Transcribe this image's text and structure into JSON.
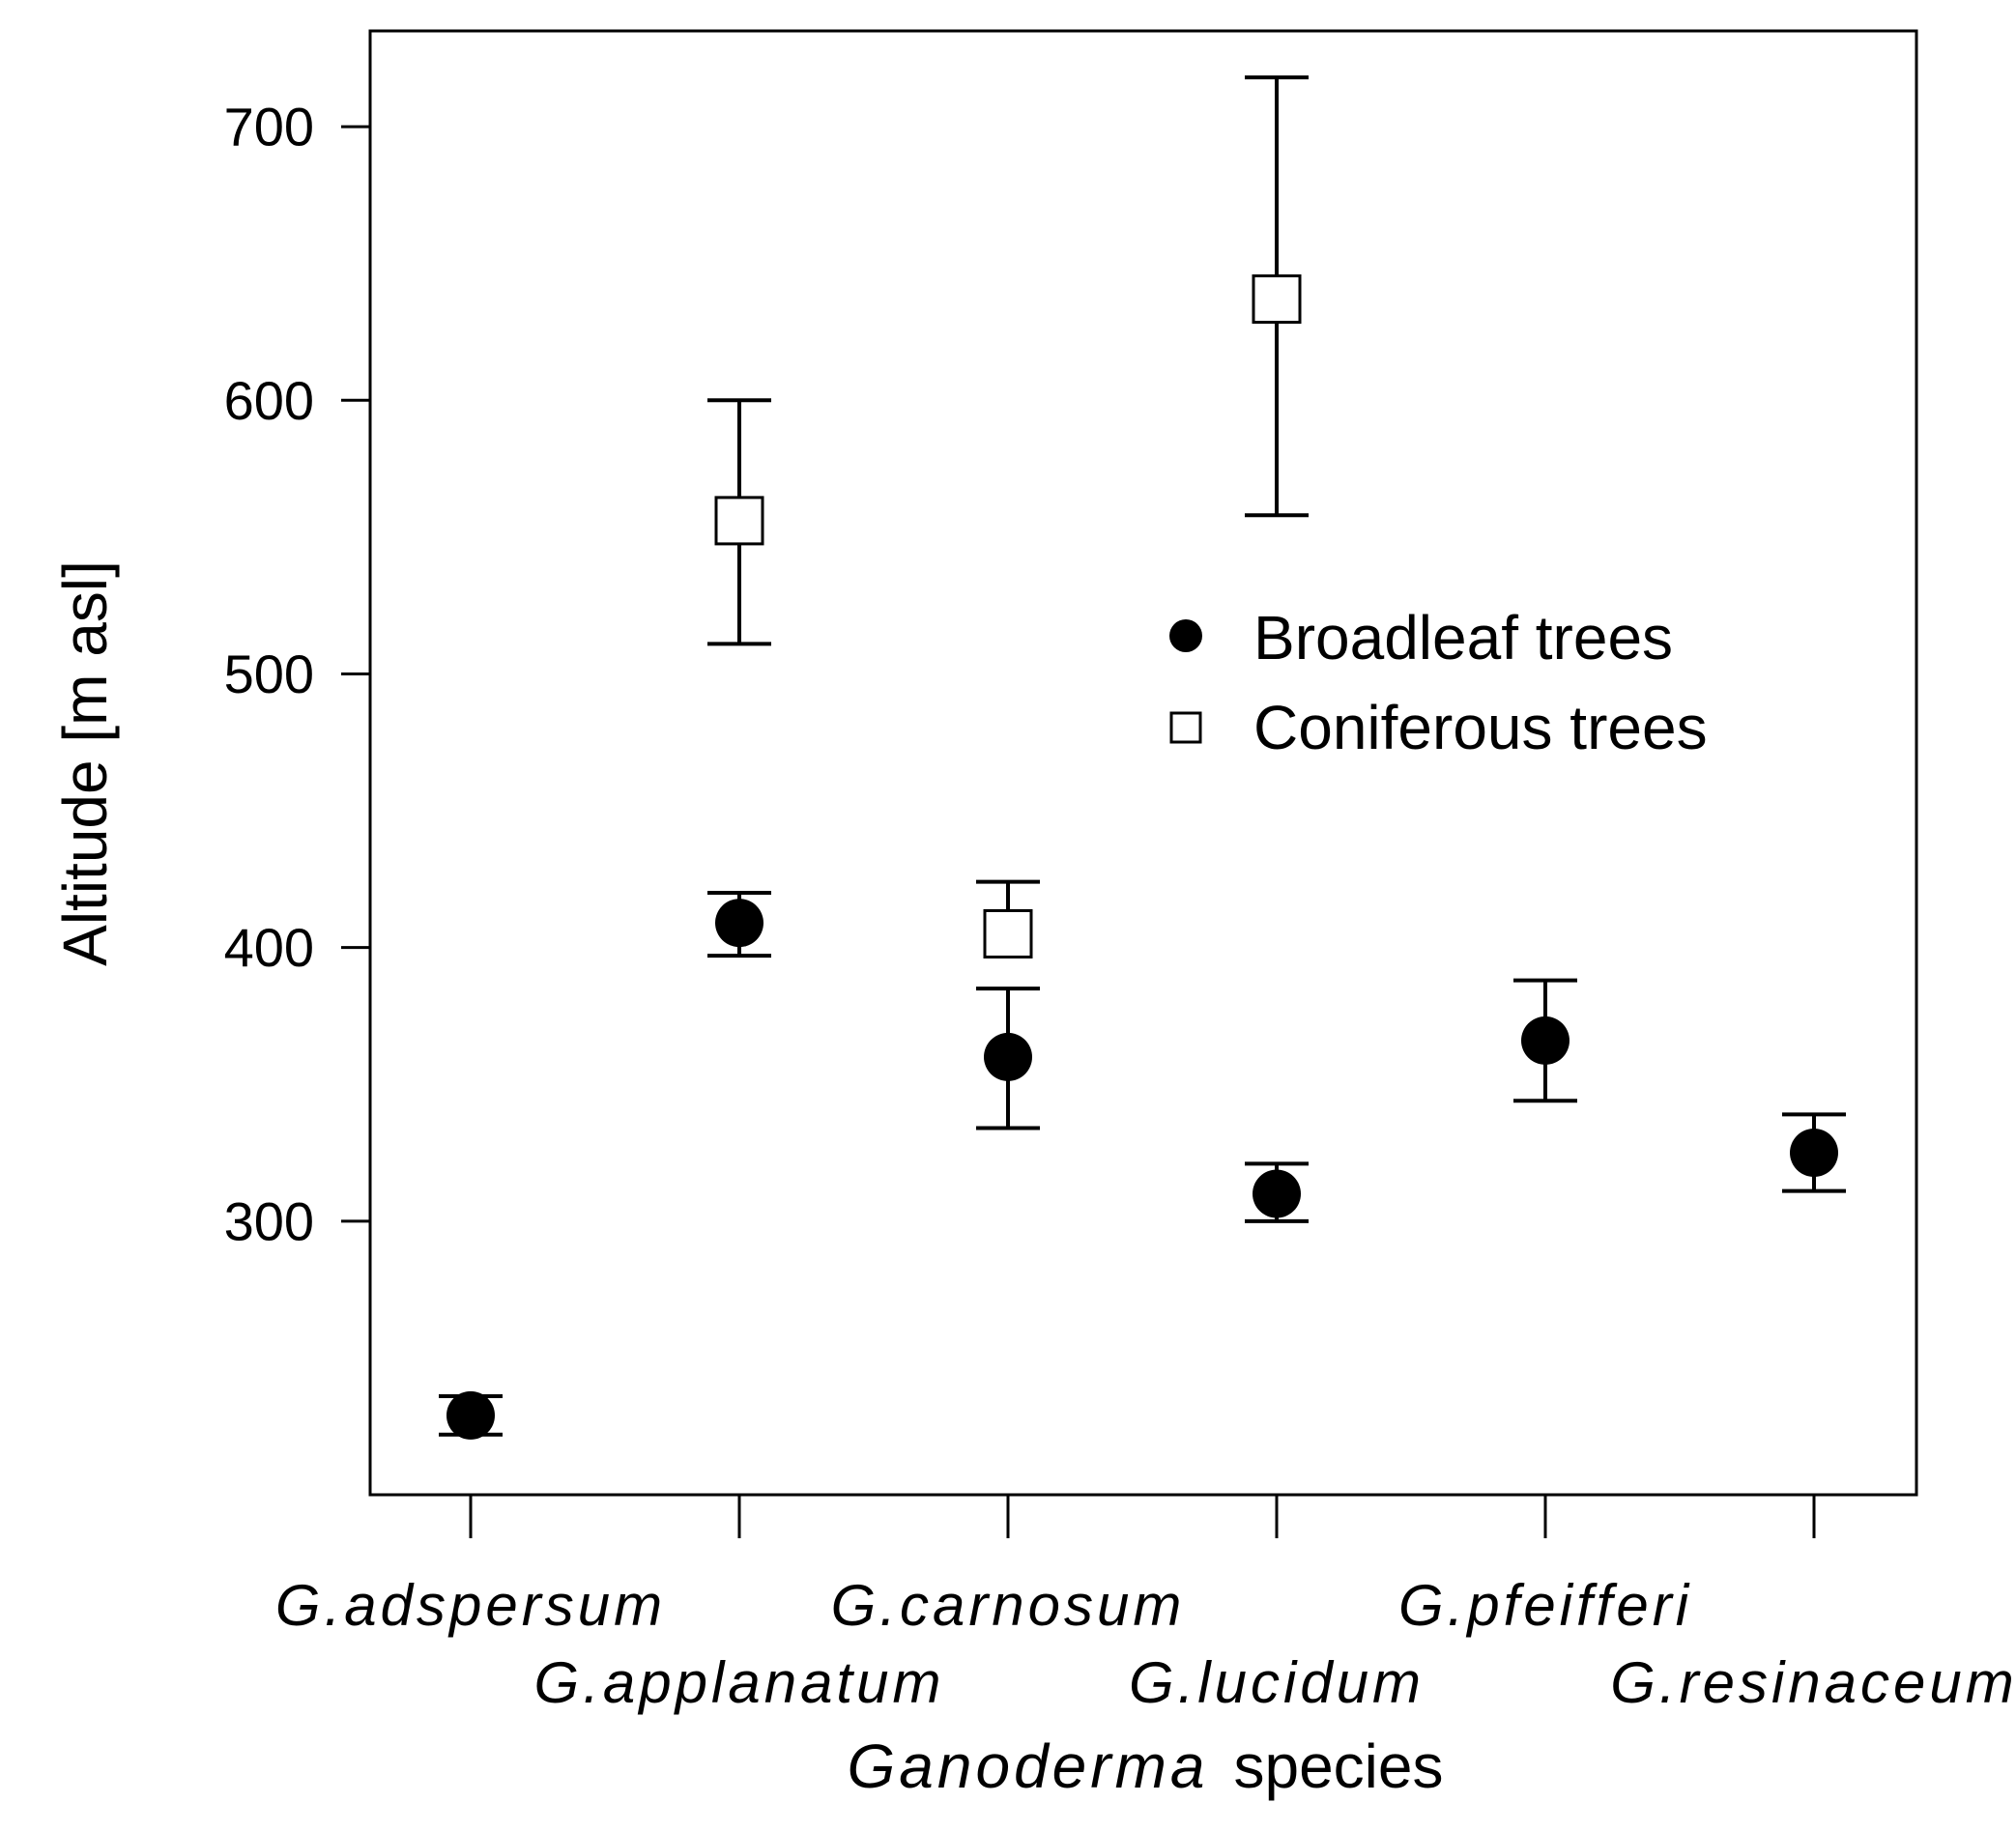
{
  "chart_data": {
    "type": "scatter",
    "title": "",
    "xlabel": {
      "italic": "Ganoderma",
      "plain": "species"
    },
    "ylabel": "Altitude [m asl]",
    "ylim": [
      200,
      735
    ],
    "yticks": [
      300,
      400,
      500,
      600,
      700
    ],
    "categories": [
      "G.adspersum",
      "G.applanatum",
      "G.carnosum",
      "G.lucidum",
      "G.pfeifferi",
      "G.resinaceum"
    ],
    "grid": false,
    "legend": {
      "position": "top-right"
    },
    "series": [
      {
        "name": "Broadleaf trees",
        "marker": "filled-circle",
        "color": "#000000",
        "values": [
          229,
          409,
          360,
          310,
          366,
          325
        ],
        "err_low": [
          222,
          397,
          334,
          300,
          344,
          311
        ],
        "err_high": [
          236,
          420,
          385,
          321,
          388,
          339
        ]
      },
      {
        "name": "Coniferous trees",
        "marker": "open-square",
        "color": "#ffffff",
        "values": [
          null,
          556,
          405,
          637,
          null,
          null
        ],
        "err_low": [
          null,
          511,
          null,
          558,
          null,
          null
        ],
        "err_high": [
          null,
          600,
          424,
          718,
          null,
          null
        ]
      }
    ]
  }
}
